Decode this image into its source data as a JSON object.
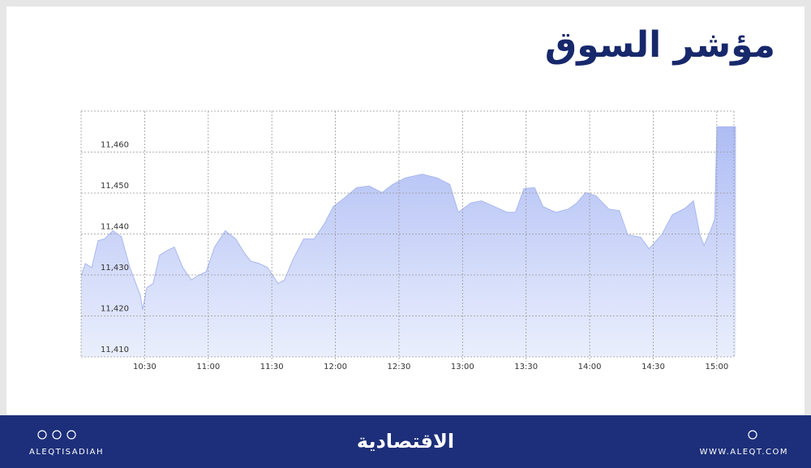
{
  "chart_data": {
    "type": "area",
    "title": "مؤشر السوق",
    "x": [
      600,
      602,
      605,
      608,
      611,
      615,
      619,
      623,
      628,
      629,
      631,
      634,
      637,
      640,
      644,
      648,
      652,
      655,
      659,
      663,
      668,
      673,
      677,
      680,
      684,
      688,
      693,
      696,
      700,
      705,
      710,
      715,
      719,
      724,
      730,
      736,
      742,
      747,
      753,
      761,
      768,
      774,
      778,
      784,
      789,
      795,
      801,
      805,
      809,
      814,
      818,
      824,
      830,
      834,
      838,
      843,
      849,
      854,
      858,
      864,
      868,
      874,
      879,
      885,
      889,
      892,
      894,
      897,
      899,
      900,
      909
    ],
    "values": [
      11429.8,
      11432.8,
      11431.8,
      11438.4,
      11438.8,
      11440.8,
      11439.4,
      11431.8,
      11424.9,
      11421.5,
      11426.9,
      11427.9,
      11434.8,
      11435.8,
      11436.8,
      11431.8,
      11428.8,
      11429.8,
      11430.8,
      11436.8,
      11440.8,
      11438.8,
      11435.4,
      11433.4,
      11432.8,
      11431.8,
      11427.9,
      11428.8,
      11433.8,
      11438.8,
      11438.8,
      11442.7,
      11446.7,
      11448.7,
      11451.3,
      11451.7,
      11450.1,
      11452.1,
      11453.7,
      11454.6,
      11453.7,
      11452.1,
      11445.3,
      11447.6,
      11448.1,
      11446.7,
      11445.3,
      11445.3,
      11451.1,
      11451.3,
      11446.7,
      11445.3,
      11446.1,
      11447.6,
      11450.1,
      11449.3,
      11446.1,
      11445.7,
      11439.8,
      11439.2,
      11436.4,
      11439.8,
      11444.7,
      11446.3,
      11448.1,
      11439.8,
      11437.2,
      11440.8,
      11443.7,
      11466.2,
      11466.2
    ],
    "color": "#a9b8ee",
    "xlim": [
      600,
      910
    ],
    "xticks": [
      {
        "value": 630,
        "label": "10:30"
      },
      {
        "value": 660,
        "label": "11:00"
      },
      {
        "value": 690,
        "label": "11:30"
      },
      {
        "value": 720,
        "label": "12:00"
      },
      {
        "value": 750,
        "label": "12:30"
      },
      {
        "value": 780,
        "label": "13:00"
      },
      {
        "value": 810,
        "label": "13:30"
      },
      {
        "value": 840,
        "label": "14:00"
      },
      {
        "value": 870,
        "label": "14:30"
      },
      {
        "value": 900,
        "label": "15:00"
      }
    ],
    "ylim": [
      11410,
      11470
    ],
    "yticks": [
      {
        "value": 11410,
        "label": "11,410"
      },
      {
        "value": 11420,
        "label": "11,420"
      },
      {
        "value": 11430,
        "label": "11,430"
      },
      {
        "value": 11440,
        "label": "11,440"
      },
      {
        "value": 11450,
        "label": "11,450"
      },
      {
        "value": 11460,
        "label": "11,460"
      }
    ],
    "grid": true
  },
  "footer": {
    "handle": "ALEQTISADIAH",
    "brand": "الاقتصادية",
    "website": "WWW.ALEQT.COM"
  }
}
